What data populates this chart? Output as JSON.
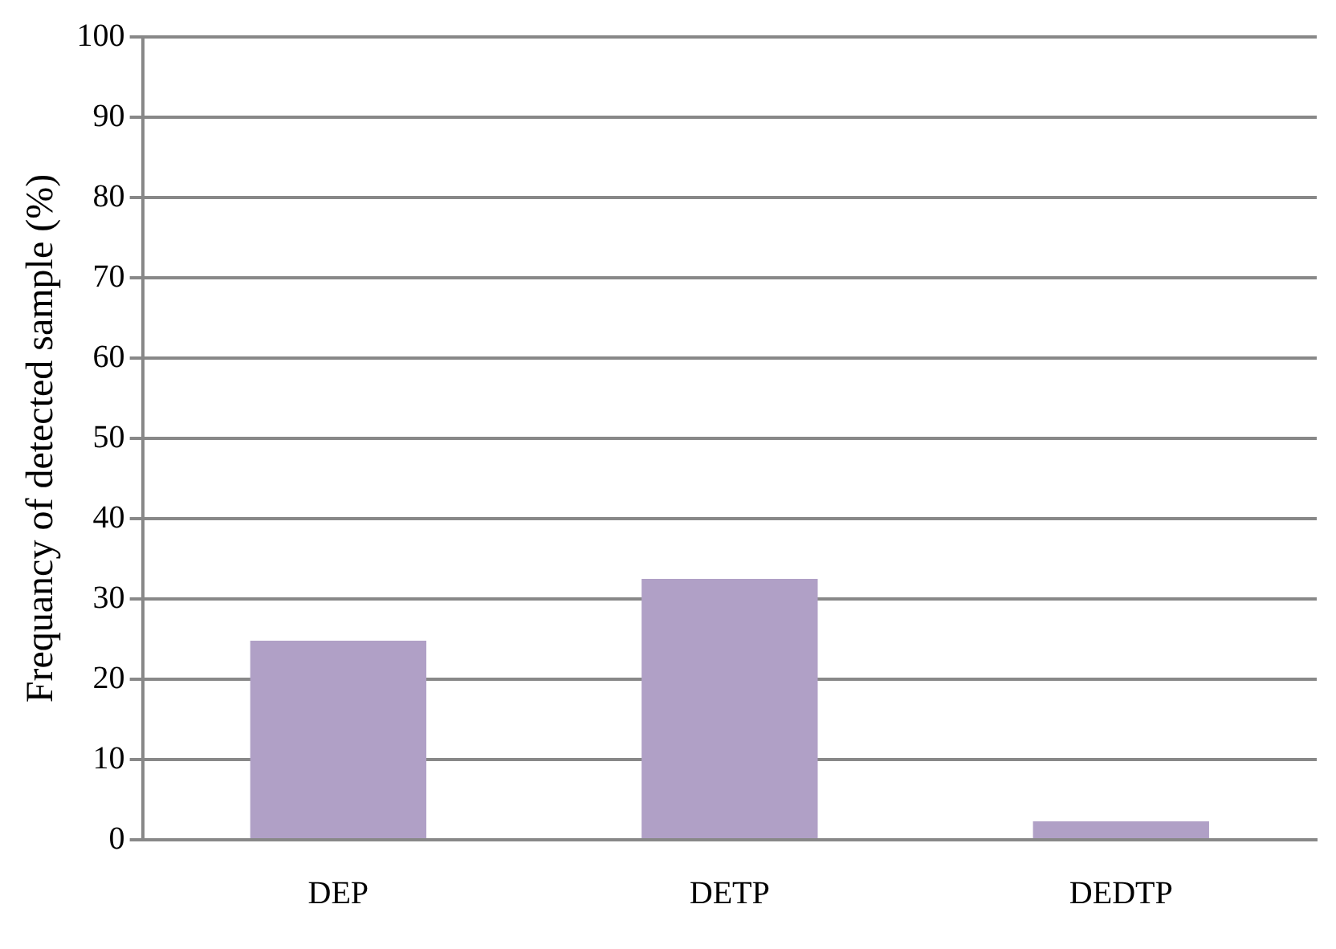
{
  "chart_data": {
    "type": "bar",
    "ylabel": "Frequancy of detected sample (%)",
    "categories": [
      "DEP",
      "DETP",
      "DEDTP"
    ],
    "values": [
      24.8,
      32.5,
      2.3
    ],
    "color": "#b0a0c6",
    "ylim": [
      0,
      100
    ],
    "yticks": [
      0,
      10,
      20,
      30,
      40,
      50,
      60,
      70,
      80,
      90,
      100
    ],
    "grid": "y"
  }
}
